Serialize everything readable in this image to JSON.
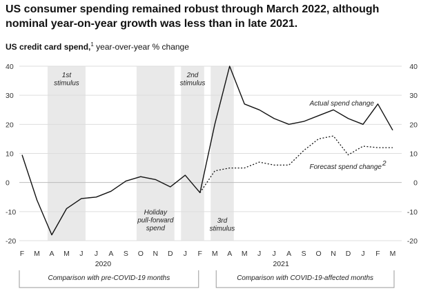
{
  "page": {
    "title": "US consumer spending remained robust through March 2022, although nominal year-on-year growth was less than in late 2021.",
    "subtitle_bold": "US credit card spend,",
    "subtitle_sup": "1",
    "subtitle_rest": " year-over-year % change"
  },
  "chart_data": {
    "type": "line",
    "categories": [
      "F",
      "M",
      "A",
      "M",
      "J",
      "J",
      "A",
      "S",
      "O",
      "N",
      "D",
      "J",
      "F",
      "M",
      "A",
      "M",
      "J",
      "J",
      "A",
      "S",
      "O",
      "N",
      "D",
      "J",
      "F",
      "M"
    ],
    "year_labels": [
      {
        "label": "2020",
        "under_index": 5
      },
      {
        "label": "2021",
        "under_index": 17
      }
    ],
    "ylim": [
      -20,
      40
    ],
    "yticks": [
      -20,
      -10,
      0,
      10,
      20,
      30,
      40
    ],
    "series": [
      {
        "name": "Actual spend change",
        "style": "solid",
        "values": [
          9.5,
          -6,
          -18,
          -9,
          -5.5,
          -5,
          -3,
          0.5,
          2,
          1,
          -1.5,
          2.5,
          -3.5,
          20,
          40,
          27,
          25,
          22,
          20,
          21,
          23,
          25,
          22,
          20,
          27,
          18
        ]
      },
      {
        "name": "Forecast spend change",
        "name_sup": "2",
        "style": "dotted",
        "values": [
          null,
          null,
          null,
          null,
          null,
          null,
          null,
          null,
          null,
          null,
          null,
          null,
          -3.5,
          4,
          5,
          5,
          7,
          6,
          6,
          11,
          15,
          16,
          9.5,
          12.5,
          12,
          12
        ]
      }
    ],
    "shaded_periods": [
      {
        "label": "1st stimulus",
        "from_index": 2,
        "to_index": 4,
        "label_position": "top"
      },
      {
        "label": "Holiday pull-forward spend",
        "from_index": 8,
        "to_index": 10,
        "label_position": "bottom"
      },
      {
        "label": "2nd stimulus",
        "from_index": 11,
        "to_index": 12,
        "label_position": "top"
      },
      {
        "label": "3rd stimulus",
        "from_index": 13,
        "to_index": 14,
        "label_position": "bottom"
      }
    ],
    "comparison_labels": [
      {
        "label": "Comparison with pre-COVID-19 months",
        "from_index": 0,
        "to_index": 12
      },
      {
        "label": "Comparison with COVID-19-affected months",
        "from_index": 13,
        "to_index": 25
      }
    ],
    "grid": true
  },
  "colors": {
    "line": "#111111",
    "grid": "#dddddd",
    "zero_line": "#bbbbbb",
    "shade": "#e9e9e9"
  }
}
